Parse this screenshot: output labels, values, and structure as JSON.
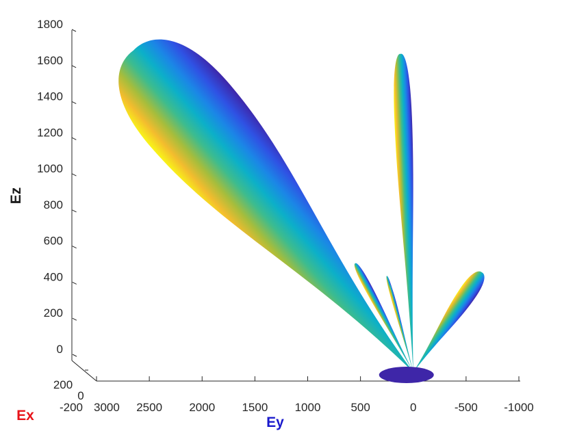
{
  "chart_data": {
    "type": "surface",
    "colormap": "parula",
    "grid": false,
    "axes": {
      "x": {
        "label": "Ex",
        "label_color": "#e8141a",
        "range": [
          -200,
          200
        ],
        "ticks": [
          "-200",
          "0",
          "200"
        ]
      },
      "y": {
        "label": "Ey",
        "label_color": "#1a1acc",
        "range": [
          -1000,
          3000
        ],
        "ticks": [
          "3000",
          "2500",
          "2000",
          "1500",
          "1000",
          "500",
          "0",
          "-500",
          "-1000"
        ]
      },
      "z": {
        "label": "Ez",
        "label_color": "#1a1a1a",
        "range": [
          0,
          1800
        ],
        "ticks": [
          "0",
          "200",
          "400",
          "600",
          "800",
          "1000",
          "1200",
          "1400",
          "1600",
          "1800"
        ]
      }
    },
    "lobes": [
      {
        "name": "main-lobe",
        "tip": {
          "y": 2650,
          "z": 1650
        },
        "length": 1700,
        "half_width": 160
      },
      {
        "name": "vertical-lobe",
        "tip": {
          "y": 120,
          "z": 1630
        },
        "length": 1600,
        "half_width": 28
      },
      {
        "name": "right-lobe",
        "tip": {
          "y": -650,
          "z": 420
        },
        "length": 700,
        "half_width": 28
      },
      {
        "name": "side-lobe-1",
        "tip": {
          "y": 550,
          "z": 470
        },
        "length": 500,
        "half_width": 12
      },
      {
        "name": "side-lobe-2",
        "tip": {
          "y": 250,
          "z": 400
        },
        "length": 360,
        "half_width": 6
      },
      {
        "name": "side-lobe-3",
        "tip": {
          "y": 220,
          "z": 350
        },
        "length": 310,
        "half_width": 5
      }
    ]
  }
}
